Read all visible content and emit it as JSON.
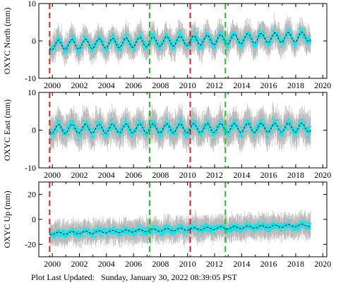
{
  "footer": {
    "label": "Plot Last Updated:",
    "value": "Sunday, January 30, 2022 08:39:05 PST"
  },
  "colors": {
    "error_bars": "#b8b8b8",
    "data": "#00e8f0",
    "model": "#000000",
    "red_lines": "#e02020",
    "green_lines": "#20c020"
  },
  "chart_data": [
    {
      "type": "scatter",
      "ylabel": "OXYC North (mm)",
      "xlim": [
        1999,
        2020.3
      ],
      "ylim": [
        -10,
        10
      ],
      "yticks": [
        -10,
        0,
        10
      ],
      "xticks": [
        2000,
        2002,
        2004,
        2006,
        2008,
        2010,
        2012,
        2014,
        2016,
        2018,
        2020
      ],
      "red_lines": [
        1999.8,
        2010.2
      ],
      "green_lines": [
        2007.2,
        2012.8
      ],
      "data_range": [
        1999.8,
        2019.1
      ],
      "model": {
        "offset": 0.0,
        "trend_per_year": 0.12,
        "amplitude": 1.3,
        "spread": 1.6,
        "error": 2.6
      }
    },
    {
      "type": "scatter",
      "ylabel": "OXYC East (mm)",
      "xlim": [
        1999,
        2020.3
      ],
      "ylim": [
        -10,
        10
      ],
      "yticks": [
        -10,
        0,
        10
      ],
      "xticks": [
        2000,
        2002,
        2004,
        2006,
        2008,
        2010,
        2012,
        2014,
        2016,
        2018,
        2020
      ],
      "red_lines": [
        1999.8,
        2010.2
      ],
      "green_lines": [
        2007.2,
        2012.8
      ],
      "data_range": [
        1999.8,
        2019.1
      ],
      "model": {
        "offset": 0.5,
        "trend_per_year": 0.02,
        "amplitude": 1.2,
        "spread": 1.8,
        "error": 3.0
      }
    },
    {
      "type": "scatter",
      "ylabel": "OXYC Up (mm)",
      "xlim": [
        1999,
        2020.3
      ],
      "ylim": [
        -30,
        30
      ],
      "yticks": [
        -20,
        0,
        20
      ],
      "xticks": [
        2000,
        2002,
        2004,
        2006,
        2008,
        2010,
        2012,
        2014,
        2016,
        2018,
        2020
      ],
      "red_lines": [
        1999.8,
        2010.2
      ],
      "green_lines": [
        2007.2,
        2012.8
      ],
      "data_range": [
        1999.8,
        2019.1
      ],
      "model": {
        "offset": -8.0,
        "trend_per_year": 0.35,
        "amplitude": 1.0,
        "spread": 4.0,
        "error": 7.0
      }
    }
  ]
}
